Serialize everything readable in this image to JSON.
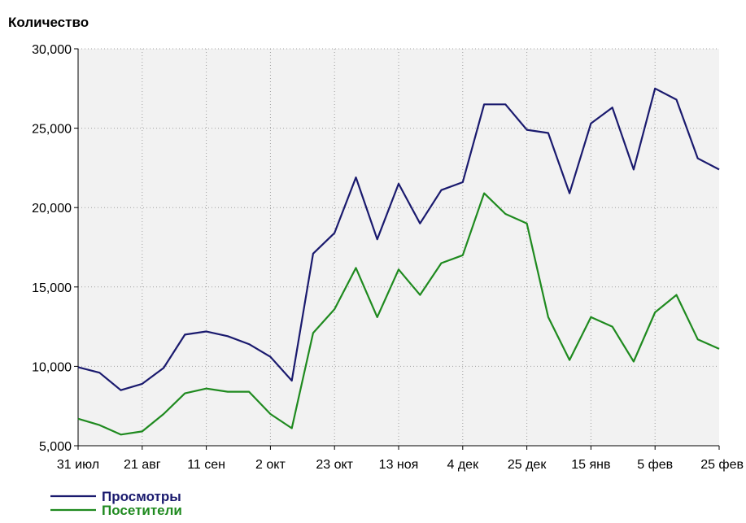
{
  "chart_data": {
    "type": "line",
    "ylabel": "Количество",
    "ylim": [
      5000,
      30000
    ],
    "yticks": [
      5000,
      10000,
      15000,
      20000,
      25000,
      30000
    ],
    "ytick_labels": [
      "5,000",
      "10,000",
      "15,000",
      "20,000",
      "25,000",
      "30,000"
    ],
    "x": [
      "31 июл",
      "7 авг",
      "14 авг",
      "21 авг",
      "28 авг",
      "4 сен",
      "11 сен",
      "18 сен",
      "25 сен",
      "2 окт",
      "9 окт",
      "16 окт",
      "23 окт",
      "30 окт",
      "6 ноя",
      "13 ноя",
      "20 ноя",
      "27 ноя",
      "4 дек",
      "11 дек",
      "18 дек",
      "25 дек",
      "1 янв",
      "8 янв",
      "15 янв",
      "22 янв",
      "29 янв",
      "5 фев",
      "12 фев",
      "19 фев",
      "25 фев"
    ],
    "xtick_labels": [
      "31 июл",
      "21 авг",
      "11 сен",
      "2 окт",
      "23 окт",
      "13 ноя",
      "4 дек",
      "25 дек",
      "15 янв",
      "5 фев",
      "25 фев"
    ],
    "grid": true,
    "legend_position": "bottom-left",
    "series": [
      {
        "name": "Просмотры",
        "color": "#1a1a6e",
        "values": [
          9950,
          9600,
          8500,
          8900,
          9900,
          12000,
          12200,
          11900,
          11400,
          10600,
          9100,
          17100,
          18400,
          21900,
          18000,
          21500,
          19000,
          21100,
          21600,
          26500,
          26500,
          24900,
          24700,
          20900,
          25300,
          26300,
          22400,
          27500,
          26800,
          23100,
          22400
        ]
      },
      {
        "name": "Посетители",
        "color": "#1f8a1f",
        "values": [
          6700,
          6300,
          5700,
          5900,
          7000,
          8300,
          8600,
          8400,
          8400,
          7000,
          6100,
          12100,
          13600,
          16200,
          13100,
          16100,
          14500,
          16500,
          17000,
          20900,
          19600,
          19000,
          13100,
          10400,
          13100,
          12500,
          10300,
          13400,
          14500,
          11700,
          11100
        ]
      }
    ]
  }
}
